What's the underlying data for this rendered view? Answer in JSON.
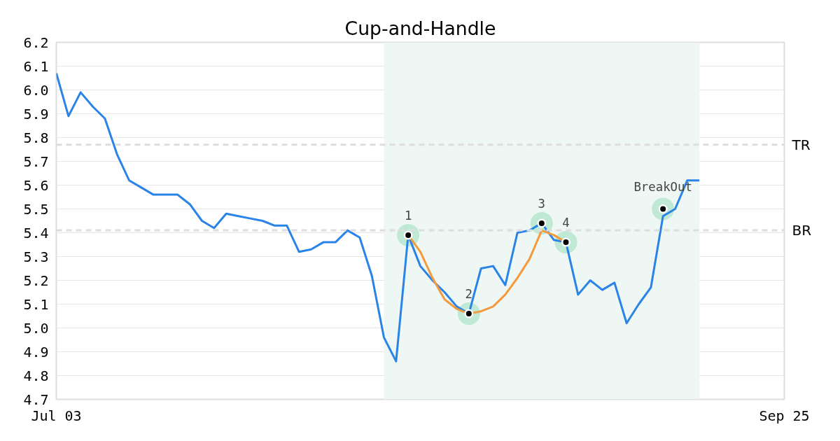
{
  "chart_data": {
    "type": "line",
    "title": "Cup-and-Handle",
    "categories": [
      "Jul 03",
      null,
      null,
      null,
      null,
      null,
      null,
      null,
      null,
      null,
      null,
      null,
      null,
      null,
      null,
      null,
      null,
      null,
      null,
      null,
      null,
      null,
      null,
      null,
      null,
      null,
      null,
      null,
      null,
      null,
      null,
      null,
      null,
      null,
      null,
      null,
      null,
      null,
      null,
      null,
      null,
      null,
      null,
      null,
      null,
      null,
      null,
      null,
      null,
      null,
      null,
      null,
      null,
      null,
      null,
      null,
      null,
      null,
      null,
      null,
      "Sep 25"
    ],
    "ylim": [
      4.7,
      6.2
    ],
    "yticks": [
      4.7,
      4.8,
      4.9,
      {
        "value": 5.0,
        "label": "5.0"
      },
      5.1,
      5.2,
      5.3,
      5.4,
      5.5,
      5.6,
      5.7,
      5.8,
      5.9,
      {
        "value": 6.0,
        "label": "6.0"
      },
      6.1,
      6.2
    ],
    "grid": "y",
    "series": [
      {
        "color": "#2a84e8",
        "values": [
          6.07,
          5.89,
          5.99,
          5.93,
          5.88,
          5.73,
          5.62,
          5.59,
          5.56,
          5.56,
          5.56,
          5.52,
          5.45,
          5.42,
          5.48,
          5.47,
          5.46,
          5.45,
          5.43,
          5.43,
          5.32,
          5.33,
          5.36,
          5.36,
          5.41,
          5.38,
          5.22,
          4.96,
          4.86,
          5.39,
          5.26,
          5.2,
          5.15,
          5.09,
          5.06,
          5.25,
          5.26,
          5.18,
          5.4,
          5.41,
          5.44,
          5.37,
          5.36,
          5.14,
          5.2,
          5.16,
          5.19,
          5.02,
          5.1,
          5.17,
          5.47,
          5.5,
          5.62,
          5.62,
          null,
          null,
          null,
          null,
          null,
          null,
          null
        ]
      },
      {
        "type": "line",
        "color": "#f59a3c",
        "values": [
          null,
          null,
          null,
          null,
          null,
          null,
          null,
          null,
          null,
          null,
          null,
          null,
          null,
          null,
          null,
          null,
          null,
          null,
          null,
          null,
          null,
          null,
          null,
          null,
          null,
          null,
          null,
          null,
          null,
          5.39,
          5.32,
          5.21,
          5.12,
          5.08,
          5.06,
          5.07,
          5.09,
          5.14,
          5.21,
          5.29,
          5.41,
          5.39,
          5.36,
          null,
          null,
          null,
          null,
          null,
          null,
          null,
          null,
          null,
          null,
          null,
          null,
          null,
          null,
          null,
          null,
          null,
          null
        ]
      },
      {
        "type": "scatter",
        "color": "#bfe9d5",
        "marker": "circle",
        "values": [
          null,
          null,
          null,
          null,
          null,
          null,
          null,
          null,
          null,
          null,
          null,
          null,
          null,
          null,
          null,
          null,
          null,
          null,
          null,
          null,
          null,
          null,
          null,
          null,
          null,
          null,
          null,
          null,
          null,
          5.39,
          null,
          null,
          null,
          null,
          5.06,
          null,
          null,
          null,
          null,
          null,
          5.44,
          null,
          5.36,
          null,
          null,
          null,
          null,
          null,
          null,
          null,
          5.5,
          null,
          null,
          null,
          null,
          null,
          null,
          null,
          null,
          null,
          null
        ]
      }
    ],
    "annotations": [
      "1",
      "2",
      "3",
      "4",
      "BreakOut"
    ],
    "ref_lines": [
      {
        "axis": "y",
        "value": 5.77,
        "label": "TR",
        "color": "#dddddd",
        "line_style": "dashed"
      },
      {
        "axis": "y",
        "value": 5.41,
        "label": "BR",
        "color": "#dddddd",
        "line_style": "dashed"
      }
    ]
  }
}
